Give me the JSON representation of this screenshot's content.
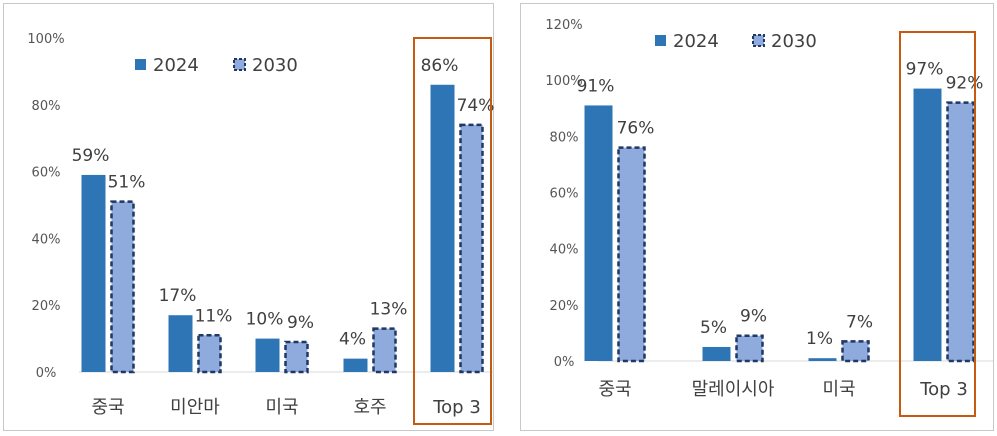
{
  "colors": {
    "series_2024": "#2e75b6",
    "series_2030_fill": "#8faadc",
    "series_2030_border": "#1f3864",
    "highlight_box": "#c55a11",
    "axis": "#d9d9d9",
    "text": "#404040"
  },
  "chart_data": [
    {
      "type": "bar",
      "categories": [
        "중국",
        "미안마",
        "미국",
        "호주",
        "Top 3"
      ],
      "series": [
        {
          "name": "2024",
          "values": [
            59,
            17,
            10,
            4,
            86
          ]
        },
        {
          "name": "2030",
          "values": [
            51,
            11,
            9,
            13,
            74
          ]
        }
      ],
      "data_labels": {
        "2024": [
          "59%",
          "17%",
          "10%",
          "4%",
          "86%"
        ],
        "2030": [
          "51%",
          "11%",
          "9%",
          "13%",
          "74%"
        ]
      },
      "y_ticks": [
        "0%",
        "20%",
        "40%",
        "60%",
        "80%",
        "100%"
      ],
      "ylim": [
        0,
        100
      ],
      "grid": false,
      "legend": "top",
      "highlighted_category": "Top 3"
    },
    {
      "type": "bar",
      "categories": [
        "중국",
        "말레이시아",
        "미국",
        "Top 3"
      ],
      "series": [
        {
          "name": "2024",
          "values": [
            91,
            5,
            1,
            97
          ]
        },
        {
          "name": "2030",
          "values": [
            76,
            9,
            7,
            92
          ]
        }
      ],
      "data_labels": {
        "2024": [
          "91%",
          "5%",
          "1%",
          "97%"
        ],
        "2030": [
          "76%",
          "9%",
          "7%",
          "92%"
        ]
      },
      "y_ticks": [
        "0%",
        "20%",
        "40%",
        "60%",
        "80%",
        "100%",
        "120%"
      ],
      "ylim": [
        0,
        120
      ],
      "grid": false,
      "legend": "top",
      "highlighted_category": "Top 3"
    }
  ]
}
